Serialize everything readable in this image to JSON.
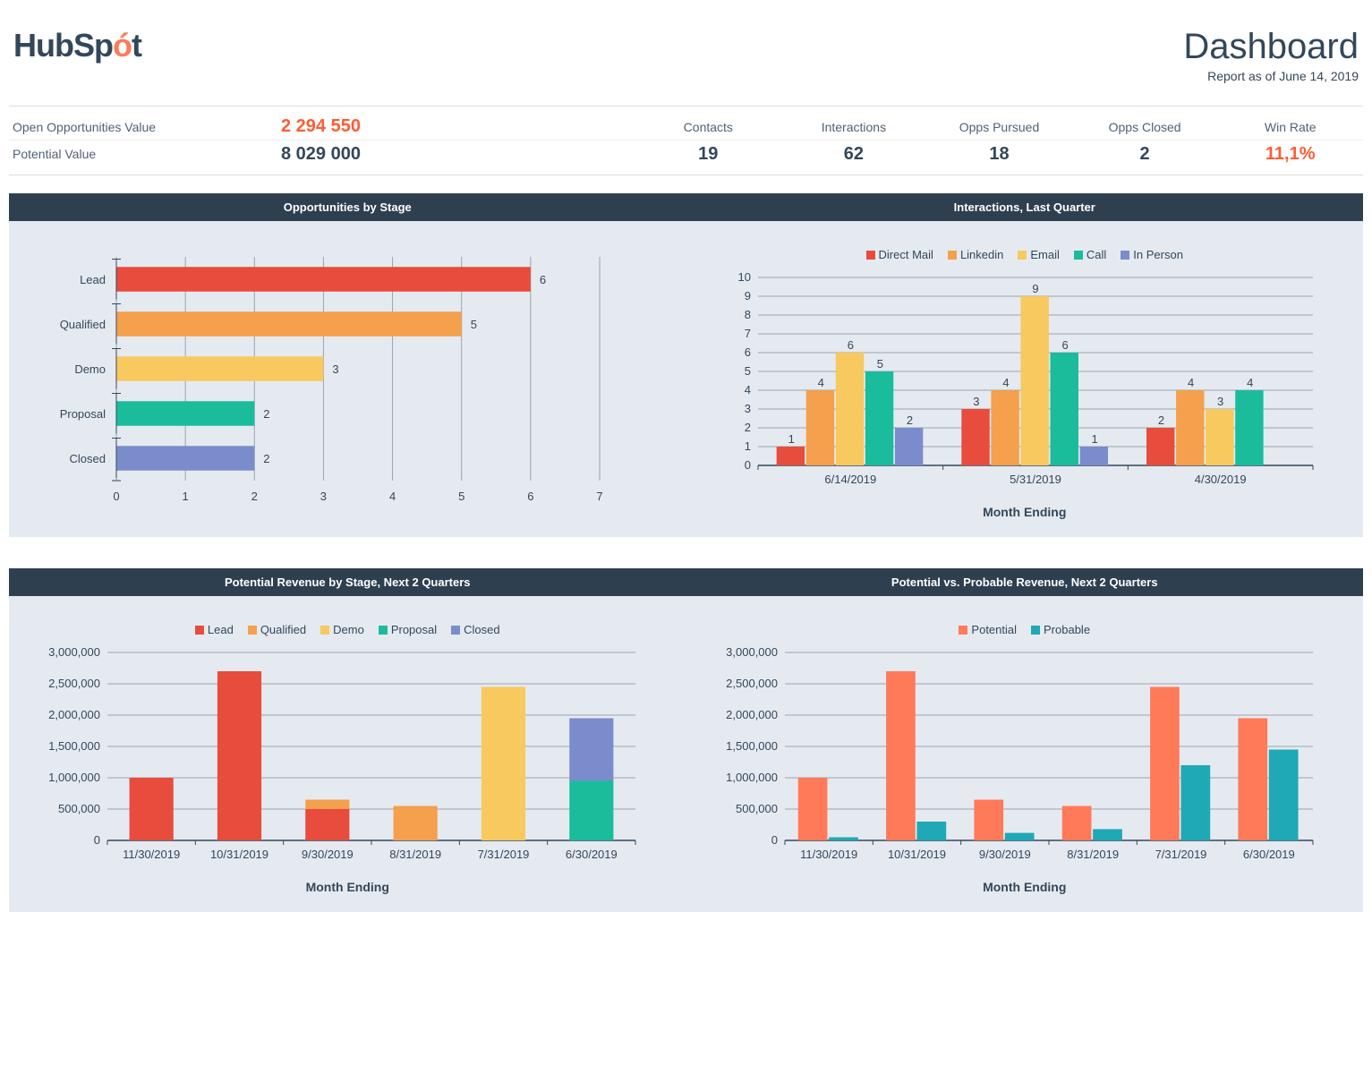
{
  "header": {
    "logo_prefix": "HubSp",
    "logo_accent": "ó",
    "logo_suffix": "t",
    "title": "Dashboard",
    "subtitle": "Report as of June 14, 2019"
  },
  "kpi": {
    "rows": [
      {
        "label": "Open Opportunities Value",
        "value": "2 294 550",
        "accent": true
      },
      {
        "label": "Potential Value",
        "value": "8 029 000",
        "accent": false
      }
    ]
  },
  "metrics": {
    "headers": [
      "Contacts",
      "Interactions",
      "Opps Pursued",
      "Opps Closed",
      "Win Rate"
    ],
    "values": [
      "19",
      "62",
      "18",
      "2",
      "11,1%"
    ],
    "accent_index": 4
  },
  "colors": {
    "red": "#e74c3c",
    "orange": "#f5a04c",
    "yellow": "#f7c95f",
    "teal": "#1abc9c",
    "purple": "#7b8ccc",
    "potential": "#ff7a59",
    "probable": "#1fa8b5",
    "grid": "#9aa4b0",
    "panel_bg": "#e5eaf0",
    "title_bg": "#2e3f50"
  },
  "chart_opps_by_stage": {
    "title": "Opportunities by Stage",
    "type": "horizontal-bar",
    "categories": [
      "Lead",
      "Qualified",
      "Demo",
      "Proposal",
      "Closed"
    ],
    "values": [
      6,
      5,
      3,
      2,
      2
    ],
    "colors": [
      "#e74c3c",
      "#f5a04c",
      "#f7c95f",
      "#1abc9c",
      "#7b8ccc"
    ],
    "xmax": 7,
    "xtick_step": 1
  },
  "chart_interactions": {
    "title": "Interactions, Last Quarter",
    "type": "grouped-bar",
    "xlabel": "Month Ending",
    "categories": [
      "6/14/2019",
      "5/31/2019",
      "4/30/2019"
    ],
    "series": [
      {
        "name": "Direct Mail",
        "color": "#e74c3c",
        "values": [
          1,
          3,
          2
        ]
      },
      {
        "name": "Linkedin",
        "color": "#f5a04c",
        "values": [
          4,
          4,
          4
        ]
      },
      {
        "name": "Email",
        "color": "#f7c95f",
        "values": [
          6,
          9,
          3
        ]
      },
      {
        "name": "Call",
        "color": "#1abc9c",
        "values": [
          5,
          6,
          4
        ]
      },
      {
        "name": "In Person",
        "color": "#7b8ccc",
        "values": [
          2,
          1,
          0
        ]
      }
    ],
    "ymax": 10,
    "ytick_step": 1
  },
  "chart_potential_revenue": {
    "title": "Potential Revenue by Stage, Next 2 Quarters",
    "type": "stacked-bar",
    "xlabel": "Month Ending",
    "categories": [
      "11/30/2019",
      "10/31/2019",
      "9/30/2019",
      "8/31/2019",
      "7/31/2019",
      "6/30/2019"
    ],
    "series": [
      {
        "name": "Lead",
        "color": "#e74c3c",
        "values": [
          1000000,
          2700000,
          500000,
          0,
          0,
          0
        ]
      },
      {
        "name": "Qualified",
        "color": "#f5a04c",
        "values": [
          0,
          0,
          150000,
          550000,
          0,
          0
        ]
      },
      {
        "name": "Demo",
        "color": "#f7c95f",
        "values": [
          0,
          0,
          0,
          0,
          2450000,
          0
        ]
      },
      {
        "name": "Proposal",
        "color": "#1abc9c",
        "values": [
          0,
          0,
          0,
          0,
          0,
          950000
        ]
      },
      {
        "name": "Closed",
        "color": "#7b8ccc",
        "values": [
          0,
          0,
          0,
          0,
          0,
          1000000
        ]
      }
    ],
    "ymax": 3000000,
    "ytick_step": 500000
  },
  "chart_potential_vs_probable": {
    "title": "Potential vs. Probable Revenue, Next 2 Quarters",
    "type": "grouped-bar",
    "xlabel": "Month Ending",
    "categories": [
      "11/30/2019",
      "10/31/2019",
      "9/30/2019",
      "8/31/2019",
      "7/31/2019",
      "6/30/2019"
    ],
    "series": [
      {
        "name": "Potential",
        "color": "#ff7a59",
        "values": [
          1000000,
          2700000,
          650000,
          550000,
          2450000,
          1950000
        ]
      },
      {
        "name": "Probable",
        "color": "#1fa8b5",
        "values": [
          50000,
          300000,
          120000,
          180000,
          1200000,
          1450000
        ]
      }
    ],
    "ymax": 3000000,
    "ytick_step": 500000
  }
}
